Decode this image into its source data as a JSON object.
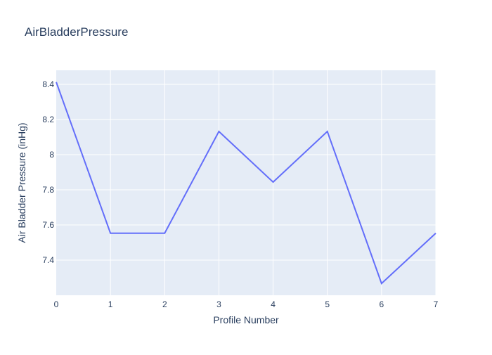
{
  "chart_data": {
    "type": "line",
    "title": "AirBladderPressure",
    "xlabel": "Profile Number",
    "ylabel": "Air Bladder Pressure (inHg)",
    "x": [
      0,
      1,
      2,
      3,
      4,
      5,
      6,
      7
    ],
    "series": [
      {
        "name": "AirBladderPressure",
        "color": "#636efa",
        "values": [
          8.413,
          7.553,
          7.553,
          8.132,
          7.844,
          8.132,
          7.267,
          7.553
        ]
      }
    ],
    "xlim": [
      0,
      7
    ],
    "ylim": [
      7.2,
      8.48
    ],
    "xticks": [
      0,
      1,
      2,
      3,
      4,
      5,
      6,
      7
    ],
    "xtick_labels": [
      "0",
      "1",
      "2",
      "3",
      "4",
      "5",
      "6",
      "7"
    ],
    "yticks": [
      7.4,
      7.6,
      7.8,
      8,
      8.2,
      8.4
    ],
    "ytick_labels": [
      "7.4",
      "7.6",
      "7.8",
      "8",
      "8.2",
      "8.4"
    ],
    "grid": true,
    "plot_bgcolor": "#e5ecf6"
  }
}
